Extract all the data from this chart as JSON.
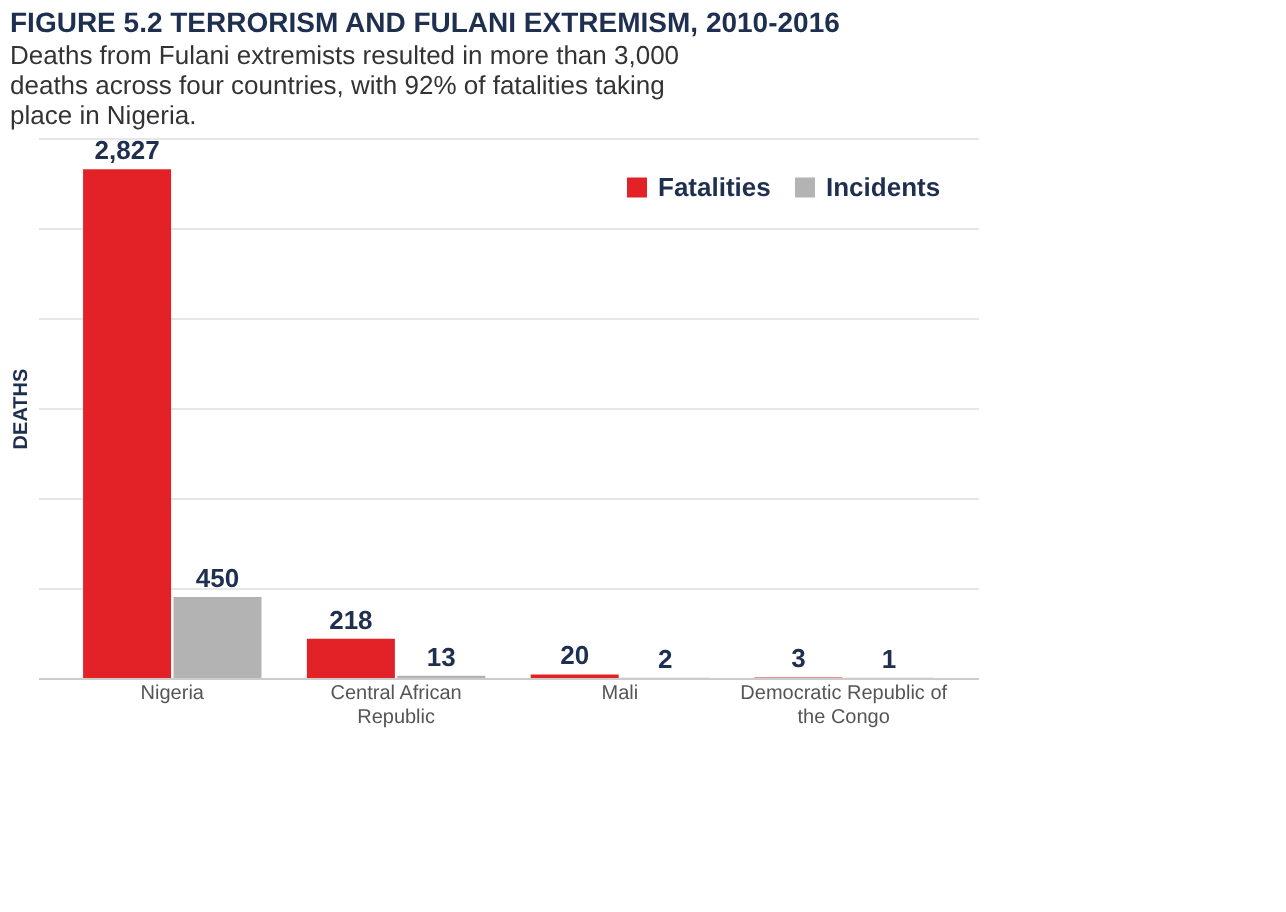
{
  "chart_data": {
    "type": "bar",
    "title": "FIGURE 5.2 TERRORISM AND FULANI EXTREMISM, 2010-2016",
    "subtitle": "Deaths from Fulani extremists resulted in more than 3,000 deaths across four countries, with 92% of fatalities taking place in Nigeria.",
    "ylabel": "DEATHS",
    "categories": [
      "Nigeria",
      "Central African Republic",
      "Mali",
      "Democratic Republic of the Congo"
    ],
    "series": [
      {
        "name": "Fatalities",
        "color": "#e32227",
        "values": [
          2827,
          218,
          20,
          3
        ],
        "value_labels": [
          "2,827",
          "218",
          "20",
          "3"
        ]
      },
      {
        "name": "Incidents",
        "color": "#b3b3b3",
        "values": [
          450,
          13,
          2,
          1
        ],
        "value_labels": [
          "450",
          "13",
          "2",
          "1"
        ]
      }
    ],
    "legend": "top right",
    "grid": "y",
    "tick_labels": "x"
  }
}
